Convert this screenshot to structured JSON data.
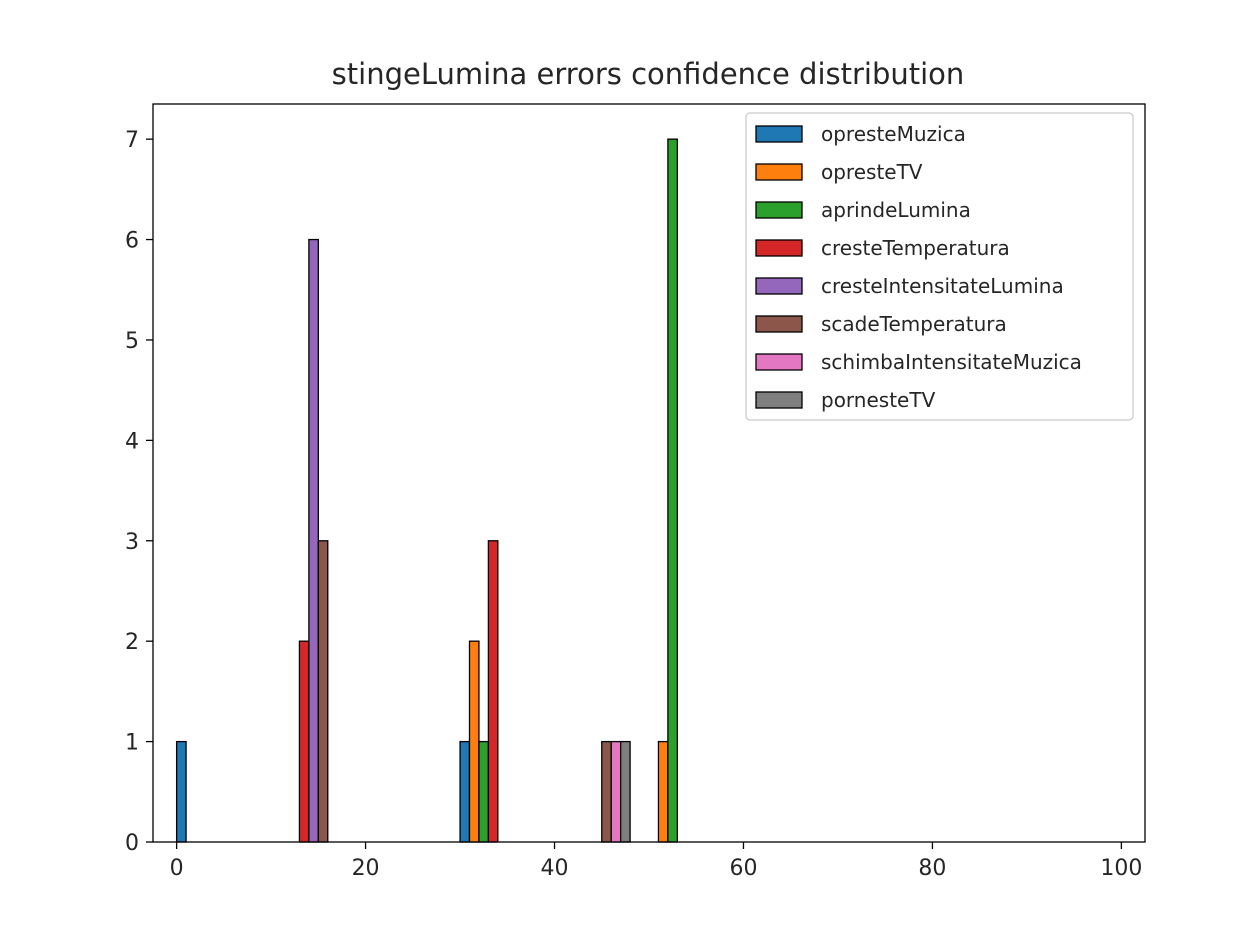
{
  "chart_data": {
    "type": "bar",
    "title": "stingeLumina errors confidence distribution",
    "xlabel": "",
    "ylabel": "",
    "xlim": [
      -2.5,
      102.5
    ],
    "ylim": [
      0,
      7.35
    ],
    "x_ticks": [
      0,
      20,
      40,
      60,
      80,
      100
    ],
    "y_ticks": [
      0,
      1,
      2,
      3,
      4,
      5,
      6,
      7
    ],
    "grid": false,
    "legend_position": "top-right",
    "bin_edges": [
      0,
      10,
      20,
      30,
      40,
      50,
      60,
      70,
      80,
      90,
      100
    ],
    "series": [
      {
        "name": "opresteMuzica",
        "color": "#1f77b4",
        "values": [
          1,
          0,
          0,
          1,
          0,
          0,
          0,
          0,
          0,
          0
        ]
      },
      {
        "name": "opresteTV",
        "color": "#ff7f0e",
        "values": [
          0,
          0,
          0,
          2,
          0,
          1,
          0,
          0,
          0,
          0
        ]
      },
      {
        "name": "aprindeLumina",
        "color": "#2ca02c",
        "values": [
          0,
          0,
          0,
          1,
          0,
          7,
          0,
          0,
          0,
          0
        ]
      },
      {
        "name": "cresteTemperatura",
        "color": "#d62728",
        "values": [
          0,
          2,
          0,
          3,
          0,
          0,
          0,
          0,
          0,
          0
        ]
      },
      {
        "name": "cresteIntensitateLumina",
        "color": "#9467bd",
        "values": [
          0,
          6,
          0,
          0,
          0,
          0,
          0,
          0,
          0,
          0
        ]
      },
      {
        "name": "scadeTemperatura",
        "color": "#8c564b",
        "values": [
          0,
          3,
          0,
          0,
          1,
          0,
          0,
          0,
          0,
          0
        ]
      },
      {
        "name": "schimbaIntensitateMuzica",
        "color": "#e377c2",
        "values": [
          0,
          0,
          0,
          0,
          1,
          0,
          0,
          0,
          0,
          0
        ]
      },
      {
        "name": "pornesteTV",
        "color": "#7f7f7f",
        "values": [
          0,
          0,
          0,
          0,
          1,
          0,
          0,
          0,
          0,
          0
        ]
      }
    ]
  }
}
